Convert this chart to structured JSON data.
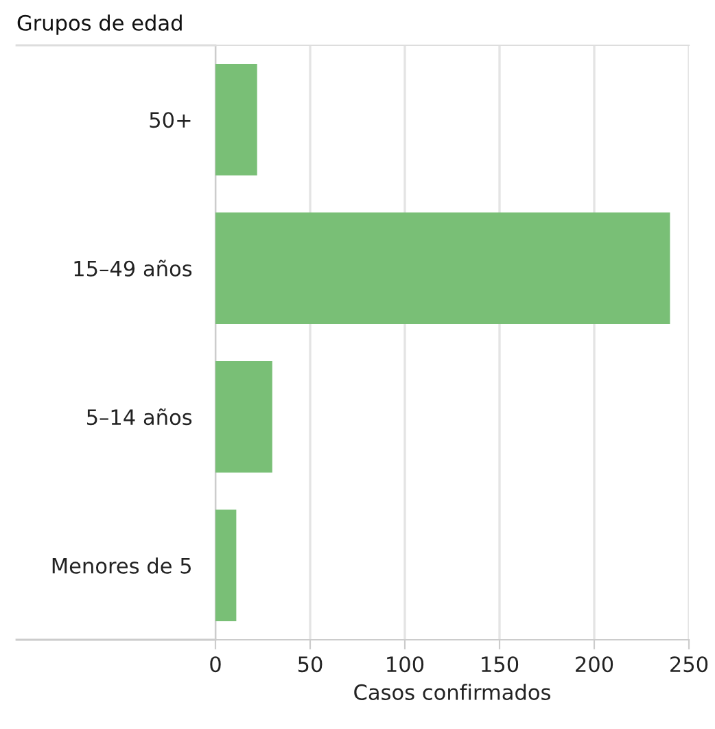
{
  "chart_data": {
    "type": "bar",
    "orientation": "horizontal",
    "title": "Grupos de edad",
    "xlabel": "Casos confirmados",
    "categories": [
      "50+",
      "15–49 años",
      "5–14 años",
      "Menores de 5"
    ],
    "values": [
      22,
      240,
      30,
      11
    ],
    "color": "#79bf76",
    "xlim": [
      0,
      250
    ],
    "xticks": [
      0,
      50,
      100,
      150,
      200,
      250
    ],
    "grid": "x",
    "legend": false
  }
}
